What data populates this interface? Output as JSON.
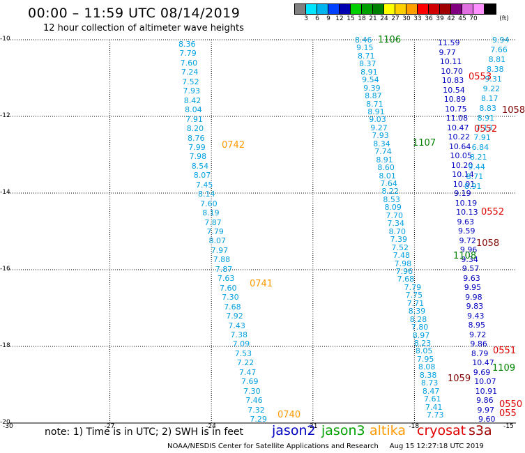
{
  "title": "00:00 – 11:59 UTC 08/14/2019",
  "subtitle": "12 hour collection of altimeter wave heights",
  "colorbar": {
    "colors": [
      "#808080",
      "#00e5ff",
      "#00b4f0",
      "#0040ff",
      "#0000b0",
      "#00d000",
      "#00a000",
      "#008000",
      "#ffff00",
      "#ffd000",
      "#ffa000",
      "#ff0000",
      "#d00000",
      "#a00000",
      "#800080",
      "#e070e0",
      "#ff90ff",
      "#000000"
    ],
    "labels": [
      "3",
      "6",
      "9",
      "12",
      "15",
      "18",
      "21",
      "24",
      "27",
      "30",
      "33",
      "36",
      "39",
      "42",
      "45",
      "70",
      "(ft)"
    ]
  },
  "axes": {
    "lat_labels": [
      "-10",
      "-12",
      "-14",
      "-16",
      "-18",
      "-20"
    ],
    "lon_labels": [
      "-30",
      "-27",
      "-24",
      "-21",
      "-18",
      "-15"
    ]
  },
  "chart_data": {
    "type": "scatter",
    "xlim": [
      -30,
      -15
    ],
    "ylim": [
      -20,
      -10
    ],
    "unit": "ft",
    "series": [
      {
        "name": "altika",
        "color": "#00a0e0",
        "pass_label": "0742",
        "values": [
          "8.36",
          "7.79",
          "7.60",
          "7.24",
          "7.52",
          "7.93",
          "8.42",
          "8.04",
          "7.91",
          "8.20",
          "8.76",
          "7.99",
          "7.98",
          "8.54",
          "8.07",
          "7.45",
          "8.14",
          "7.60",
          "8.19",
          "7.87",
          "7.79",
          "8.07",
          "7.97",
          "7.88",
          "7.87",
          "7.63",
          "7.60",
          "7.30",
          "7.68",
          "7.92",
          "7.43",
          "7.38",
          "7.09",
          "7.53",
          "7.22",
          "7.47",
          "7.69",
          "7.30",
          "7.46",
          "7.32",
          "7.29"
        ]
      },
      {
        "name": "altika",
        "color": "#00a0e0",
        "pass_label": "0741",
        "values": []
      },
      {
        "name": "altika",
        "color": "#00a0e0",
        "pass_label": "0740",
        "values": []
      },
      {
        "name": "jason3",
        "color": "#00a0e0",
        "pass_label": "1106",
        "values": [
          "8.46",
          "9.15",
          "8.71",
          "8.37",
          "8.91",
          "9.54",
          "9.39",
          "8.87",
          "8.71",
          "8.91",
          "9.03",
          "9.27",
          "7.93",
          "8.34",
          "7.74",
          "8.91",
          "8.60",
          "8.01",
          "7.64",
          "8.22",
          "8.53",
          "8.09",
          "7.70",
          "7.34",
          "8.70",
          "7.39",
          "7.52",
          "7.48",
          "7.98",
          "7.96",
          "7.68",
          "7.79",
          "7.75",
          "7.71",
          "8.39",
          "8.28",
          "7.80",
          "8.97",
          "8.23",
          "8.05",
          "7.95",
          "8.08",
          "8.38",
          "8.73",
          "8.47",
          "7.61",
          "7.41",
          "7.73"
        ]
      },
      {
        "name": "jason3",
        "color": "#008000",
        "pass_label": "1107",
        "values": []
      },
      {
        "name": "jason3",
        "color": "#008000",
        "pass_label": "1108",
        "values": []
      },
      {
        "name": "jason3",
        "color": "#008000",
        "pass_label": "1109",
        "values": []
      },
      {
        "name": "jason2",
        "color": "#0000c0",
        "pass_label": "",
        "values": [
          "11.59",
          "9.77",
          "10.11",
          "10.70",
          "10.83",
          "10.54",
          "10.89",
          "10.75",
          "11.08",
          "10.47",
          "10.22",
          "10.64",
          "10.05",
          "10.20",
          "10.14",
          "10.01",
          "9.19",
          "10.19",
          "10.13",
          "9.63",
          "9.59",
          "9.72",
          "9.96",
          "9.34",
          "9.57",
          "9.63",
          "9.95",
          "9.98",
          "9.83",
          "9.43",
          "8.95",
          "9.72",
          "9.86",
          "8.79",
          "10.47",
          "9.69",
          "10.07",
          "10.91",
          "9.86",
          "9.97",
          "9.60"
        ]
      },
      {
        "name": "jason2 right",
        "color": "#00a0e0",
        "pass_label": "",
        "values": [
          "9.94",
          "7.66",
          "8.81",
          "8.38",
          "9.31",
          "9.22",
          "8.17",
          "8.83",
          "8.91",
          "7.13",
          "7.91",
          "6.84",
          "8.21",
          "9.44",
          "8.71",
          "8.91"
        ]
      },
      {
        "name": "cryosat",
        "color": "#ff0000",
        "pass_label": "0553",
        "values": []
      },
      {
        "name": "cryosat",
        "color": "#ff0000",
        "pass_label": "0552",
        "values": []
      },
      {
        "name": "s3a",
        "color": "#a00000",
        "pass_label": "1058",
        "values": []
      },
      {
        "name": "s3a",
        "color": "#a00000",
        "pass_label": "1059",
        "values": []
      }
    ]
  },
  "pass_labels": [
    {
      "text": "1106",
      "color": "#008000"
    },
    {
      "text": "0553",
      "color": "#e00000"
    },
    {
      "text": "1058",
      "color": "#800000"
    },
    {
      "text": "0742",
      "color": "#ff9900"
    },
    {
      "text": "1107",
      "color": "#008000"
    },
    {
      "text": "0552",
      "color": "#e00000"
    },
    {
      "text": "0552",
      "color": "#e00000"
    },
    {
      "text": "1058",
      "color": "#800000"
    },
    {
      "text": "1108",
      "color": "#008000"
    },
    {
      "text": "0741",
      "color": "#ff9900"
    },
    {
      "text": "0551",
      "color": "#e00000"
    },
    {
      "text": "1109",
      "color": "#008000"
    },
    {
      "text": "1059",
      "color": "#800000"
    },
    {
      "text": "0550",
      "color": "#e00000"
    },
    {
      "text": "055",
      "color": "#e00000"
    },
    {
      "text": "0740",
      "color": "#ff9900"
    }
  ],
  "note": "note:  1) Time is in UTC;  2) SWH is in feet",
  "legend": [
    {
      "label": "jason2",
      "color": "#0000c0"
    },
    {
      "label": "jason3",
      "color": "#00a000"
    },
    {
      "label": "altika",
      "color": "#ff9900"
    },
    {
      "label": "cryosat",
      "color": "#e00000"
    },
    {
      "label": "s3a",
      "color": "#a00000"
    }
  ],
  "credit": "NOAA/NESDIS Center for Satellite Applications and Research",
  "timestamp": "Aug 15 12:27:18 UTC 2019"
}
